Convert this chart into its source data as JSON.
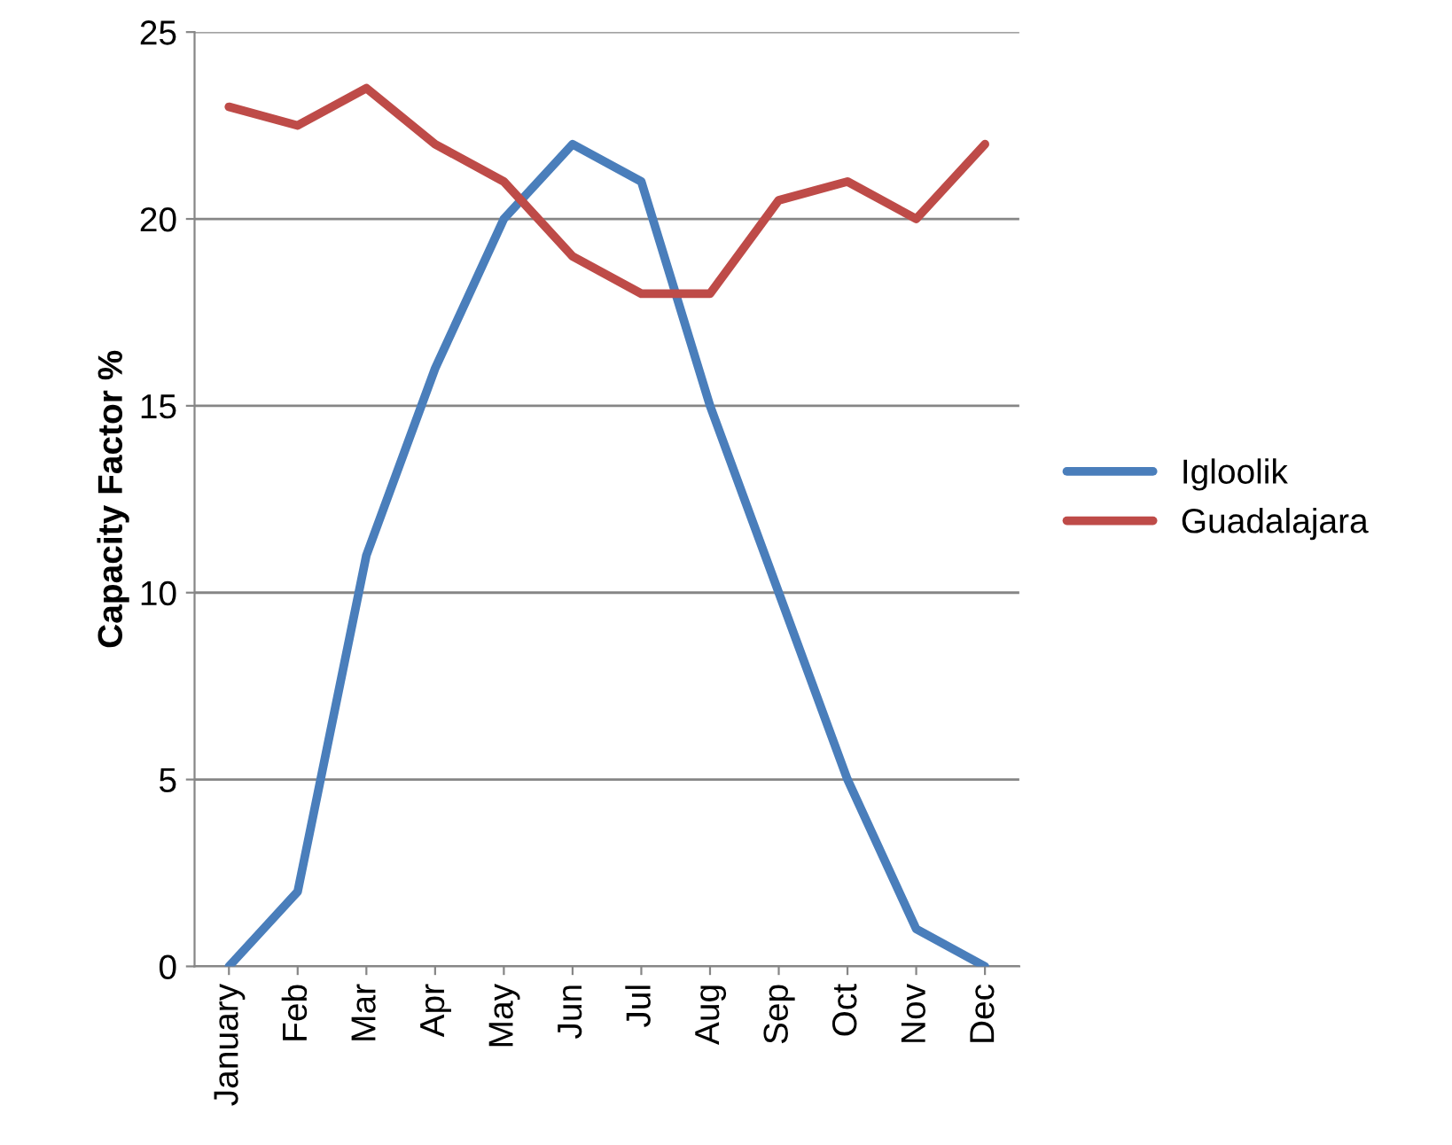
{
  "chart_data": {
    "type": "line",
    "ylabel": "Capacity Factor %",
    "categories": [
      "January",
      "Feb",
      "Mar",
      "Apr",
      "May",
      "Jun",
      "Jul",
      "Aug",
      "Sep",
      "Oct",
      "Nov",
      "Dec"
    ],
    "series": [
      {
        "name": "Igloolik",
        "color": "#4a7ebb",
        "values": [
          0,
          2,
          11,
          16,
          20,
          22,
          21,
          15,
          10,
          5,
          1,
          0
        ]
      },
      {
        "name": "Guadalajara",
        "color": "#be4b48",
        "values": [
          23,
          22.5,
          23.5,
          22,
          21,
          19,
          18,
          18,
          20.5,
          21,
          20,
          22
        ]
      }
    ],
    "ylim": [
      0,
      25
    ],
    "yticks": [
      0,
      5,
      10,
      15,
      20,
      25
    ],
    "grid": "y",
    "legend": "right",
    "marker": "none",
    "line_style": "solid"
  }
}
